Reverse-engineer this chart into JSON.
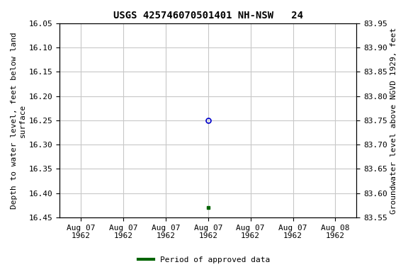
{
  "title": "USGS 425746070501401 NH-NSW   24",
  "ylabel_left": "Depth to water level, feet below land\nsurface",
  "ylabel_right": "Groundwater level above NGVD 1929, feet",
  "ylim_left_top": 16.05,
  "ylim_left_bottom": 16.45,
  "ylim_right_top": 83.95,
  "ylim_right_bottom": 83.55,
  "x_ticks_labels": [
    "Aug 07\n1962",
    "Aug 07\n1962",
    "Aug 07\n1962",
    "Aug 07\n1962",
    "Aug 07\n1962",
    "Aug 07\n1962",
    "Aug 08\n1962"
  ],
  "x_ticks_positions": [
    0,
    1,
    2,
    3,
    4,
    5,
    6
  ],
  "xlim": [
    -0.5,
    6.5
  ],
  "yticks_left": [
    16.05,
    16.1,
    16.15,
    16.2,
    16.25,
    16.3,
    16.35,
    16.4,
    16.45
  ],
  "yticks_right": [
    83.95,
    83.9,
    83.85,
    83.8,
    83.75,
    83.7,
    83.65,
    83.6,
    83.55
  ],
  "point_open_x": 3.0,
  "point_open_y": 16.25,
  "point_open_color": "#0000cc",
  "point_filled_x": 3.0,
  "point_filled_y": 16.43,
  "point_filled_color": "#006400",
  "legend_label": "Period of approved data",
  "legend_color": "#006400",
  "background_color": "#ffffff",
  "grid_color": "#c8c8c8",
  "title_fontsize": 10,
  "axis_fontsize": 8,
  "tick_fontsize": 8
}
